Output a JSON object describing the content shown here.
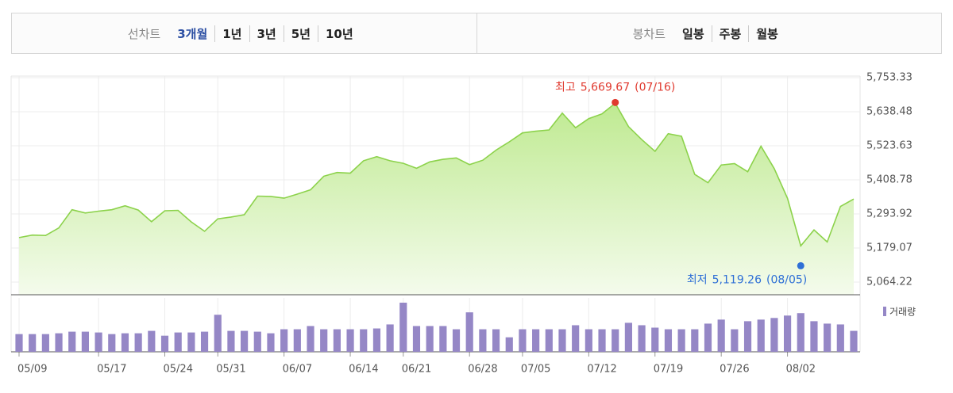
{
  "tabs": {
    "line": {
      "label": "선차트",
      "options": [
        "3개월",
        "1년",
        "3년",
        "5년",
        "10년"
      ],
      "selected": 0
    },
    "candle": {
      "label": "봉차트",
      "options": [
        "일봉",
        "주봉",
        "월봉"
      ]
    }
  },
  "chart_data": [
    {
      "type": "area",
      "color": "#8cd24b",
      "categories": [
        "05/09",
        null,
        null,
        null,
        null,
        null,
        "05/17",
        null,
        null,
        null,
        null,
        "05/24",
        null,
        null,
        null,
        "05/31",
        null,
        null,
        null,
        null,
        "06/07",
        null,
        null,
        null,
        null,
        "06/14",
        null,
        null,
        null,
        "06/21",
        null,
        null,
        null,
        null,
        "06/28",
        null,
        null,
        null,
        "07/05",
        null,
        null,
        null,
        null,
        "07/12",
        null,
        null,
        null,
        null,
        "07/19",
        null,
        null,
        null,
        null,
        "07/26",
        null,
        null,
        null,
        null,
        "08/02",
        null,
        null,
        null,
        null,
        null
      ],
      "values": [
        5214.08,
        5222.68,
        5221.42,
        5246.68,
        5308.15,
        5297.1,
        5303.27,
        5308.13,
        5321.41,
        5307.01,
        5267.84,
        5304.72,
        5306.04,
        5266.95,
        5235.48,
        5277.51,
        5283.4,
        5291.34,
        5354.03,
        5352.96,
        5346.99,
        5360.79,
        5375.32,
        5421.03,
        5433.74,
        5431.6,
        5473.23,
        5487.03,
        5473.17,
        5464.62,
        5447.87,
        5469.3,
        5477.9,
        5482.87,
        5460.48,
        5475.09,
        5509.01,
        5537.02,
        5567.19,
        5572.85,
        5576.98,
        5633.91,
        5584.54,
        5615.35,
        5631.22,
        5667.2,
        5588.27,
        5544.59,
        5505.0,
        5564.41,
        5555.74,
        5427.13,
        5399.22,
        5459.1,
        5463.54,
        5436.44,
        5522.3,
        5446.68,
        5346.56,
        5186.33,
        5240.03,
        5199.5,
        5319.31,
        5344.16
      ],
      "ylim": [
        5021.5,
        5758.7
      ],
      "yticks": [
        {
          "value": 5064.22,
          "label": "5,064.22"
        },
        {
          "value": 5179.07,
          "label": "5,179.07"
        },
        {
          "value": 5293.92,
          "label": "5,293.92"
        },
        {
          "value": 5408.78,
          "label": "5,408.78"
        },
        {
          "value": 5523.63,
          "label": "5,523.63"
        },
        {
          "value": 5638.48,
          "label": "5,638.48"
        },
        {
          "value": 5753.33,
          "label": "5,753.33"
        }
      ],
      "grid": true,
      "high": {
        "label": "최고",
        "value": 5669.67,
        "value_label": "5,669.67",
        "date": "(07/16)",
        "index": 45,
        "color": "#e03a2f"
      },
      "low": {
        "label": "최저",
        "value": 5119.26,
        "value_label": "5,119.26",
        "date": "(08/05)",
        "index": 59,
        "color": "#2e6fd6"
      }
    },
    {
      "type": "bar",
      "name": "거래량",
      "color": "#9587c6",
      "values": [
        22,
        22,
        22,
        23,
        25,
        25,
        24,
        22,
        23,
        23,
        26,
        20,
        24,
        24,
        25,
        46,
        26,
        26,
        25,
        23,
        28,
        28,
        32,
        28,
        28,
        28,
        28,
        29,
        34,
        61,
        32,
        32,
        32,
        28,
        49,
        28,
        28,
        18,
        28,
        28,
        28,
        28,
        33,
        28,
        28,
        28,
        36,
        33,
        30,
        28,
        28,
        28,
        35,
        40,
        28,
        38,
        40,
        42,
        45,
        48,
        38,
        35,
        34,
        26
      ]
    }
  ]
}
